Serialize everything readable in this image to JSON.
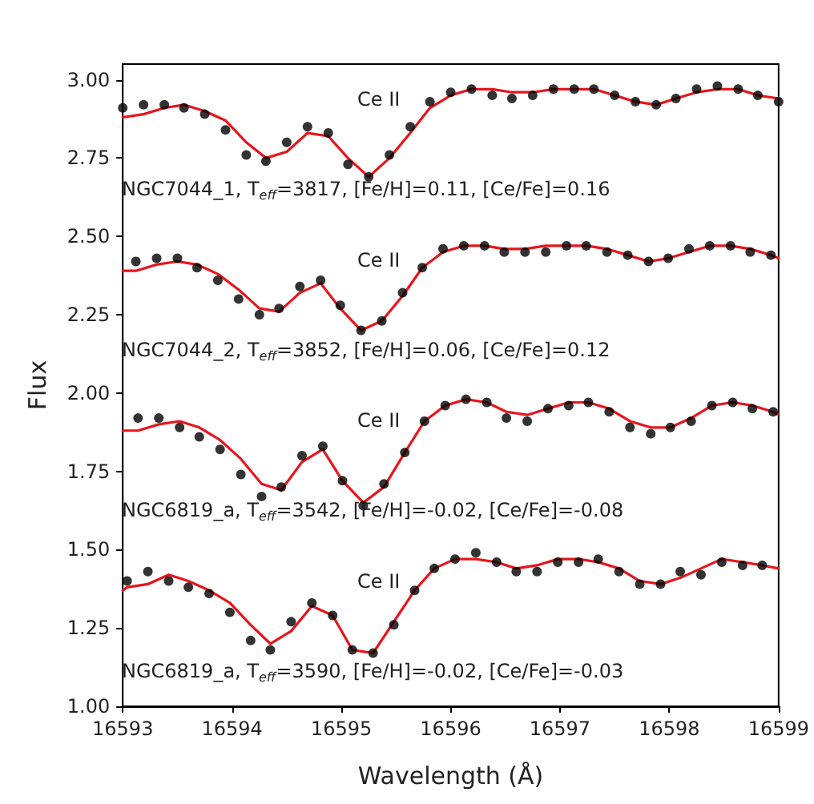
{
  "chart_data": {
    "type": "scatter",
    "xlabel": "Wavelength (Å)",
    "ylabel": "Flux",
    "xlim": [
      16593,
      16599
    ],
    "xticks": [
      16593,
      16594,
      16595,
      16596,
      16597,
      16598,
      16599
    ],
    "ylim": [
      1.0,
      3.05
    ],
    "yticks": [
      {
        "value": 1,
        "label": "1.00"
      },
      {
        "value": 1.25,
        "label": "1.25"
      },
      {
        "value": 1.5,
        "label": "1.50"
      },
      {
        "value": 1.75,
        "label": "1.75"
      },
      {
        "value": 2,
        "label": "2.00"
      },
      {
        "value": 2.25,
        "label": "2.25"
      },
      {
        "value": 2.5,
        "label": "2.50"
      },
      {
        "value": 2.75,
        "label": "2.75"
      },
      {
        "value": 3,
        "label": "3.00"
      }
    ],
    "grid": false,
    "series": [
      {
        "marker": "circle",
        "color": "#000000",
        "x": [
          16593.0,
          16593.19,
          16593.38,
          16593.56,
          16593.75,
          16593.94,
          16594.13,
          16594.31,
          16594.5,
          16594.69,
          16594.88,
          16595.06,
          16595.25,
          16595.44,
          16595.63,
          16595.81,
          16596.0,
          16596.19,
          16596.38,
          16596.56,
          16596.75,
          16596.94,
          16597.13,
          16597.31,
          16597.5,
          16597.69,
          16597.88,
          16598.06,
          16598.25,
          16598.44,
          16598.63,
          16598.81,
          16599.0
        ],
        "values": [
          2.91,
          2.92,
          2.92,
          2.91,
          2.89,
          2.84,
          2.76,
          2.74,
          2.8,
          2.85,
          2.83,
          2.73,
          2.69,
          2.76,
          2.85,
          2.93,
          2.96,
          2.97,
          2.95,
          2.94,
          2.95,
          2.97,
          2.97,
          2.97,
          2.95,
          2.93,
          2.92,
          2.94,
          2.97,
          2.98,
          2.97,
          2.95,
          2.93
        ]
      },
      {
        "type": "line",
        "marker": "none",
        "color": "#e8141c",
        "x": [
          16593.0,
          16593.19,
          16593.38,
          16593.56,
          16593.75,
          16593.94,
          16594.13,
          16594.31,
          16594.5,
          16594.69,
          16594.88,
          16595.06,
          16595.25,
          16595.44,
          16595.63,
          16595.81,
          16596.0,
          16596.19,
          16596.38,
          16596.56,
          16596.75,
          16596.94,
          16597.13,
          16597.31,
          16597.5,
          16597.69,
          16597.88,
          16598.06,
          16598.25,
          16598.44,
          16598.63,
          16598.81,
          16599.0
        ],
        "values": [
          2.88,
          2.89,
          2.91,
          2.92,
          2.9,
          2.87,
          2.8,
          2.75,
          2.77,
          2.83,
          2.82,
          2.75,
          2.69,
          2.75,
          2.83,
          2.91,
          2.95,
          2.97,
          2.97,
          2.96,
          2.96,
          2.97,
          2.97,
          2.97,
          2.95,
          2.93,
          2.92,
          2.94,
          2.96,
          2.97,
          2.97,
          2.95,
          2.94
        ]
      },
      {
        "marker": "circle",
        "color": "#000000",
        "x": [
          16593.12,
          16593.31,
          16593.5,
          16593.68,
          16593.87,
          16594.06,
          16594.25,
          16594.43,
          16594.62,
          16594.81,
          16594.99,
          16595.18,
          16595.37,
          16595.56,
          16595.74,
          16595.93,
          16596.12,
          16596.31,
          16596.49,
          16596.68,
          16596.87,
          16597.06,
          16597.24,
          16597.43,
          16597.62,
          16597.81,
          16597.99,
          16598.18,
          16598.37,
          16598.56,
          16598.74,
          16598.93
        ],
        "values": [
          2.42,
          2.43,
          2.43,
          2.4,
          2.36,
          2.3,
          2.25,
          2.27,
          2.34,
          2.36,
          2.28,
          2.2,
          2.23,
          2.32,
          2.4,
          2.46,
          2.47,
          2.47,
          2.45,
          2.45,
          2.45,
          2.47,
          2.47,
          2.45,
          2.44,
          2.42,
          2.43,
          2.46,
          2.47,
          2.47,
          2.45,
          2.44
        ]
      },
      {
        "type": "line",
        "marker": "none",
        "color": "#e8141c",
        "x": [
          16593.0,
          16593.12,
          16593.31,
          16593.5,
          16593.68,
          16593.87,
          16594.06,
          16594.25,
          16594.43,
          16594.62,
          16594.81,
          16594.99,
          16595.18,
          16595.37,
          16595.56,
          16595.74,
          16595.93,
          16596.12,
          16596.31,
          16596.49,
          16596.68,
          16596.87,
          16597.06,
          16597.24,
          16597.43,
          16597.62,
          16597.81,
          16597.99,
          16598.18,
          16598.37,
          16598.56,
          16598.74,
          16598.93,
          16599.0
        ],
        "values": [
          2.39,
          2.39,
          2.41,
          2.42,
          2.41,
          2.38,
          2.33,
          2.27,
          2.26,
          2.32,
          2.35,
          2.27,
          2.2,
          2.23,
          2.31,
          2.4,
          2.45,
          2.47,
          2.47,
          2.46,
          2.46,
          2.47,
          2.47,
          2.47,
          2.46,
          2.44,
          2.42,
          2.43,
          2.45,
          2.47,
          2.47,
          2.46,
          2.44,
          2.43
        ]
      },
      {
        "marker": "circle",
        "color": "#000000",
        "x": [
          16593.14,
          16593.33,
          16593.52,
          16593.7,
          16593.89,
          16594.08,
          16594.27,
          16594.45,
          16594.64,
          16594.83,
          16595.01,
          16595.2,
          16595.39,
          16595.58,
          16595.76,
          16595.95,
          16596.14,
          16596.33,
          16596.51,
          16596.7,
          16596.89,
          16597.08,
          16597.26,
          16597.45,
          16597.64,
          16597.83,
          16598.01,
          16598.2,
          16598.39,
          16598.58,
          16598.76,
          16598.95
        ],
        "values": [
          1.92,
          1.92,
          1.89,
          1.86,
          1.82,
          1.74,
          1.67,
          1.7,
          1.8,
          1.83,
          1.72,
          1.64,
          1.71,
          1.81,
          1.91,
          1.96,
          1.98,
          1.97,
          1.92,
          1.91,
          1.95,
          1.96,
          1.97,
          1.94,
          1.89,
          1.87,
          1.89,
          1.91,
          1.96,
          1.97,
          1.95,
          1.94
        ]
      },
      {
        "type": "line",
        "marker": "none",
        "color": "#e8141c",
        "x": [
          16593.0,
          16593.14,
          16593.33,
          16593.52,
          16593.7,
          16593.89,
          16594.08,
          16594.27,
          16594.45,
          16594.64,
          16594.83,
          16595.01,
          16595.2,
          16595.39,
          16595.58,
          16595.76,
          16595.95,
          16596.14,
          16596.33,
          16596.51,
          16596.7,
          16596.89,
          16597.08,
          16597.26,
          16597.45,
          16597.64,
          16597.83,
          16598.01,
          16598.2,
          16598.39,
          16598.58,
          16598.76,
          16598.95,
          16599.0
        ],
        "values": [
          1.88,
          1.88,
          1.9,
          1.91,
          1.89,
          1.85,
          1.79,
          1.71,
          1.69,
          1.78,
          1.82,
          1.72,
          1.65,
          1.7,
          1.81,
          1.91,
          1.96,
          1.98,
          1.97,
          1.94,
          1.93,
          1.95,
          1.97,
          1.97,
          1.95,
          1.91,
          1.89,
          1.89,
          1.92,
          1.96,
          1.97,
          1.96,
          1.94,
          1.93
        ]
      },
      {
        "marker": "circle",
        "color": "#000000",
        "x": [
          16593.04,
          16593.23,
          16593.42,
          16593.6,
          16593.79,
          16593.98,
          16594.17,
          16594.35,
          16594.54,
          16594.73,
          16594.92,
          16595.1,
          16595.29,
          16595.48,
          16595.67,
          16595.85,
          16596.04,
          16596.23,
          16596.42,
          16596.6,
          16596.79,
          16596.98,
          16597.17,
          16597.35,
          16597.54,
          16597.73,
          16597.92,
          16598.1,
          16598.29,
          16598.48,
          16598.67,
          16598.85
        ],
        "values": [
          1.4,
          1.43,
          1.4,
          1.38,
          1.36,
          1.3,
          1.21,
          1.18,
          1.27,
          1.33,
          1.29,
          1.18,
          1.17,
          1.26,
          1.37,
          1.44,
          1.47,
          1.49,
          1.46,
          1.43,
          1.43,
          1.46,
          1.46,
          1.47,
          1.43,
          1.39,
          1.39,
          1.43,
          1.42,
          1.46,
          1.45,
          1.45
        ]
      },
      {
        "type": "line",
        "marker": "none",
        "color": "#e8141c",
        "x": [
          16593.0,
          16593.04,
          16593.23,
          16593.42,
          16593.6,
          16593.79,
          16593.98,
          16594.17,
          16594.35,
          16594.54,
          16594.73,
          16594.92,
          16595.1,
          16595.29,
          16595.48,
          16595.67,
          16595.85,
          16596.04,
          16596.23,
          16596.42,
          16596.6,
          16596.79,
          16596.98,
          16597.17,
          16597.35,
          16597.54,
          16597.73,
          16597.92,
          16598.1,
          16598.29,
          16598.48,
          16598.67,
          16598.85,
          16599.0
        ],
        "values": [
          1.37,
          1.38,
          1.39,
          1.42,
          1.4,
          1.37,
          1.33,
          1.26,
          1.2,
          1.24,
          1.32,
          1.29,
          1.18,
          1.17,
          1.27,
          1.37,
          1.44,
          1.47,
          1.47,
          1.46,
          1.44,
          1.45,
          1.47,
          1.47,
          1.46,
          1.44,
          1.4,
          1.39,
          1.41,
          1.44,
          1.47,
          1.46,
          1.45,
          1.44
        ]
      }
    ],
    "annotations": [
      "Ce II",
      "NGC7044_1, T$_{eff}$=3817, [Fe/H]=0.11, [Ce/Fe]=0.16",
      "Ce II",
      "NGC7044_2, T$_{eff}$=3852, [Fe/H]=0.06, [Ce/Fe]=0.12",
      "Ce II",
      "NGC6819_a, T$_{eff}$=3542, [Fe/H]=-0.02, [Ce/Fe]=-0.08",
      "Ce II",
      "NGC6819_a, T$_{eff}$=3590, [Fe/H]=-0.02, [Ce/Fe]=-0.03"
    ]
  }
}
